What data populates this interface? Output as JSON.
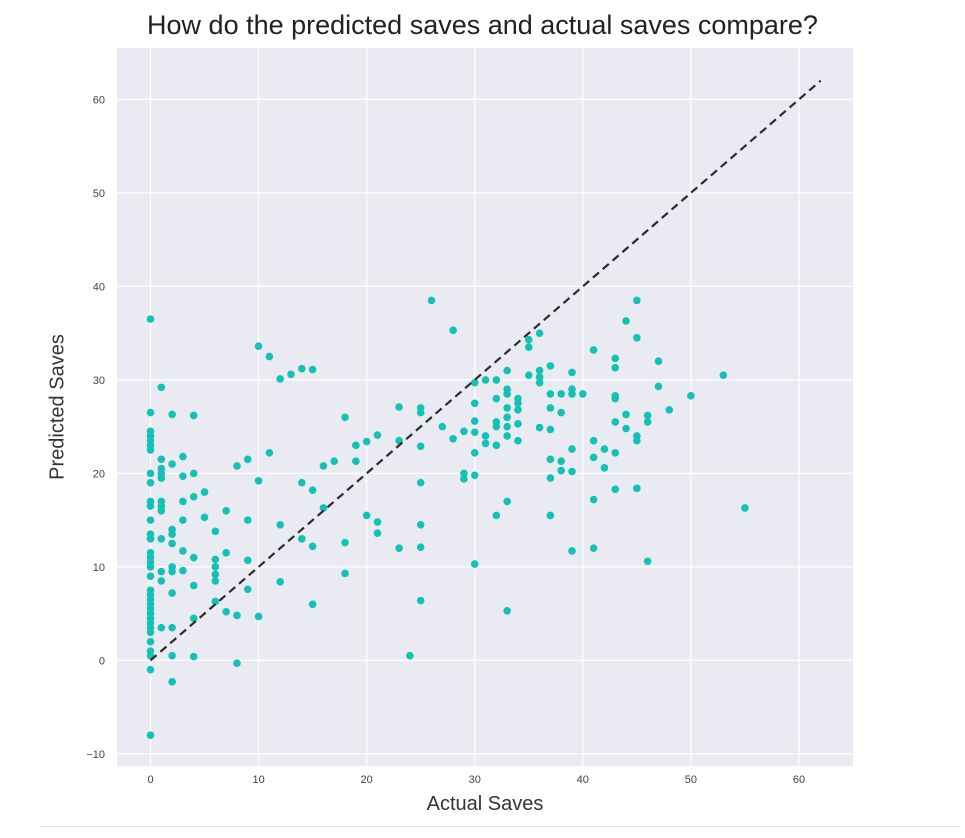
{
  "chart_data": {
    "type": "scatter",
    "title": "How do the predicted saves and actual saves compare?",
    "xlabel": "Actual Saves",
    "ylabel": "Predicted Saves",
    "xlim": [
      -3.1,
      65
    ],
    "ylim": [
      -11.3,
      65.5
    ],
    "xticks": [
      0,
      10,
      20,
      30,
      40,
      50,
      60
    ],
    "yticks": [
      -10,
      0,
      10,
      20,
      30,
      40,
      50,
      60
    ],
    "grid": true,
    "background": "#eaeaf2",
    "point_color": "#13c2b4",
    "reference_line": {
      "from": [
        0,
        0
      ],
      "to": [
        62,
        62
      ],
      "style": "dashed",
      "color": "#2b2b2b"
    },
    "points": [
      [
        0,
        -8
      ],
      [
        0,
        -1
      ],
      [
        0,
        0.5
      ],
      [
        0,
        1
      ],
      [
        0,
        2
      ],
      [
        0,
        3
      ],
      [
        0,
        3.5
      ],
      [
        0,
        4
      ],
      [
        0,
        4.5
      ],
      [
        0,
        5
      ],
      [
        0,
        5.5
      ],
      [
        0,
        6
      ],
      [
        0,
        6.5
      ],
      [
        0,
        7
      ],
      [
        0,
        7.5
      ],
      [
        0,
        9
      ],
      [
        0,
        10
      ],
      [
        0,
        10.5
      ],
      [
        0,
        11
      ],
      [
        0,
        11.5
      ],
      [
        0,
        13
      ],
      [
        0,
        13.5
      ],
      [
        0,
        15
      ],
      [
        0,
        16.5
      ],
      [
        0,
        17
      ],
      [
        0,
        19
      ],
      [
        0,
        20
      ],
      [
        0,
        22.5
      ],
      [
        0,
        23
      ],
      [
        0,
        23.5
      ],
      [
        0,
        24
      ],
      [
        0,
        24.5
      ],
      [
        0,
        26.5
      ],
      [
        0,
        36.5
      ],
      [
        1,
        29.2
      ],
      [
        1,
        21.5
      ],
      [
        1,
        20.5
      ],
      [
        1,
        20
      ],
      [
        1,
        19.5
      ],
      [
        1,
        17
      ],
      [
        1,
        16.5
      ],
      [
        1,
        16
      ],
      [
        1,
        13
      ],
      [
        1,
        9.5
      ],
      [
        1,
        8.5
      ],
      [
        1,
        3.5
      ],
      [
        2,
        26.3
      ],
      [
        2,
        21
      ],
      [
        2,
        14
      ],
      [
        2,
        13.5
      ],
      [
        2,
        12.5
      ],
      [
        2,
        10
      ],
      [
        2,
        9.5
      ],
      [
        2,
        7.2
      ],
      [
        2,
        3.5
      ],
      [
        2,
        0.5
      ],
      [
        2,
        -2.3
      ],
      [
        3,
        21.8
      ],
      [
        3,
        19.7
      ],
      [
        3,
        17
      ],
      [
        3,
        15
      ],
      [
        3,
        11.7
      ],
      [
        3,
        9.6
      ],
      [
        4,
        26.2
      ],
      [
        4,
        20
      ],
      [
        4,
        17.5
      ],
      [
        4,
        11
      ],
      [
        4,
        8
      ],
      [
        4,
        4.5
      ],
      [
        4,
        0.4
      ],
      [
        5,
        18
      ],
      [
        5,
        15.3
      ],
      [
        6,
        13.8
      ],
      [
        6,
        10.8
      ],
      [
        6,
        10
      ],
      [
        6,
        9.2
      ],
      [
        6,
        8.5
      ],
      [
        6,
        6.3
      ],
      [
        7,
        16
      ],
      [
        7,
        11.5
      ],
      [
        7,
        5.2
      ],
      [
        8,
        20.8
      ],
      [
        8,
        4.8
      ],
      [
        8,
        -0.3
      ],
      [
        9,
        21.5
      ],
      [
        9,
        15
      ],
      [
        9,
        10.7
      ],
      [
        9,
        7.6
      ],
      [
        10,
        33.6
      ],
      [
        10,
        19.2
      ],
      [
        10,
        4.7
      ],
      [
        11,
        32.5
      ],
      [
        11,
        22.2
      ],
      [
        12,
        30.1
      ],
      [
        12,
        14.5
      ],
      [
        12,
        8.4
      ],
      [
        13,
        30.6
      ],
      [
        14,
        31.2
      ],
      [
        14,
        19
      ],
      [
        14,
        13
      ],
      [
        15,
        31.1
      ],
      [
        15,
        18.2
      ],
      [
        15,
        12.2
      ],
      [
        15,
        6
      ],
      [
        16,
        20.8
      ],
      [
        16,
        16.3
      ],
      [
        17,
        21.3
      ],
      [
        18,
        26
      ],
      [
        18,
        12.6
      ],
      [
        18,
        9.3
      ],
      [
        19,
        23
      ],
      [
        19,
        21.3
      ],
      [
        20,
        23.4
      ],
      [
        20,
        15.5
      ],
      [
        21,
        24.1
      ],
      [
        21,
        14.8
      ],
      [
        21,
        13.6
      ],
      [
        23,
        27.1
      ],
      [
        23,
        23.5
      ],
      [
        23,
        12
      ],
      [
        24,
        0.5
      ],
      [
        25,
        27
      ],
      [
        25,
        26.5
      ],
      [
        25,
        22.9
      ],
      [
        25,
        19
      ],
      [
        25,
        14.5
      ],
      [
        25,
        12.1
      ],
      [
        25,
        6.4
      ],
      [
        26,
        38.5
      ],
      [
        27,
        25
      ],
      [
        28,
        35.3
      ],
      [
        28,
        23.7
      ],
      [
        29,
        24.5
      ],
      [
        29,
        20
      ],
      [
        29,
        19.4
      ],
      [
        30,
        29.7
      ],
      [
        30,
        27.5
      ],
      [
        30,
        25.6
      ],
      [
        30,
        24.4
      ],
      [
        30,
        22.2
      ],
      [
        30,
        19.8
      ],
      [
        30,
        10.3
      ],
      [
        31,
        30
      ],
      [
        31,
        24
      ],
      [
        31,
        23.2
      ],
      [
        32,
        30
      ],
      [
        32,
        28
      ],
      [
        32,
        25.5
      ],
      [
        32,
        25
      ],
      [
        32,
        23
      ],
      [
        32,
        15.5
      ],
      [
        33,
        31
      ],
      [
        33,
        29
      ],
      [
        33,
        28.5
      ],
      [
        33,
        27
      ],
      [
        33,
        26
      ],
      [
        33,
        25
      ],
      [
        33,
        24
      ],
      [
        33,
        17
      ],
      [
        33,
        5.3
      ],
      [
        34,
        28
      ],
      [
        34,
        27.5
      ],
      [
        34,
        26.8
      ],
      [
        34,
        25.3
      ],
      [
        34,
        23.5
      ],
      [
        35,
        34.3
      ],
      [
        35,
        33.5
      ],
      [
        35,
        30.5
      ],
      [
        36,
        35
      ],
      [
        36,
        31
      ],
      [
        36,
        30.3
      ],
      [
        36,
        29.7
      ],
      [
        36,
        24.9
      ],
      [
        37,
        31.5
      ],
      [
        37,
        28.5
      ],
      [
        37,
        27
      ],
      [
        37,
        24.7
      ],
      [
        37,
        21.5
      ],
      [
        37,
        19.5
      ],
      [
        37,
        15.5
      ],
      [
        38,
        28.5
      ],
      [
        38,
        26.5
      ],
      [
        38,
        21.3
      ],
      [
        38,
        20.3
      ],
      [
        39,
        30.8
      ],
      [
        39,
        29
      ],
      [
        39,
        28.5
      ],
      [
        39,
        22.6
      ],
      [
        39,
        20.2
      ],
      [
        39,
        11.7
      ],
      [
        40,
        28.5
      ],
      [
        41,
        33.2
      ],
      [
        41,
        23.5
      ],
      [
        41,
        21.7
      ],
      [
        41,
        17.2
      ],
      [
        41,
        12
      ],
      [
        42,
        22.6
      ],
      [
        42,
        20.6
      ],
      [
        43,
        32.3
      ],
      [
        43,
        31.3
      ],
      [
        43,
        28.3
      ],
      [
        43,
        28
      ],
      [
        43,
        25.5
      ],
      [
        43,
        22.2
      ],
      [
        43,
        18.3
      ],
      [
        44,
        36.3
      ],
      [
        44,
        26.3
      ],
      [
        44,
        24.8
      ],
      [
        45,
        38.5
      ],
      [
        45,
        34.5
      ],
      [
        45,
        24
      ],
      [
        45,
        23.5
      ],
      [
        45,
        18.4
      ],
      [
        46,
        26.2
      ],
      [
        46,
        25.5
      ],
      [
        46,
        10.6
      ],
      [
        47,
        32
      ],
      [
        47,
        29.3
      ],
      [
        48,
        26.8
      ],
      [
        50,
        28.3
      ],
      [
        53,
        30.5
      ],
      [
        55,
        16.3
      ]
    ]
  }
}
